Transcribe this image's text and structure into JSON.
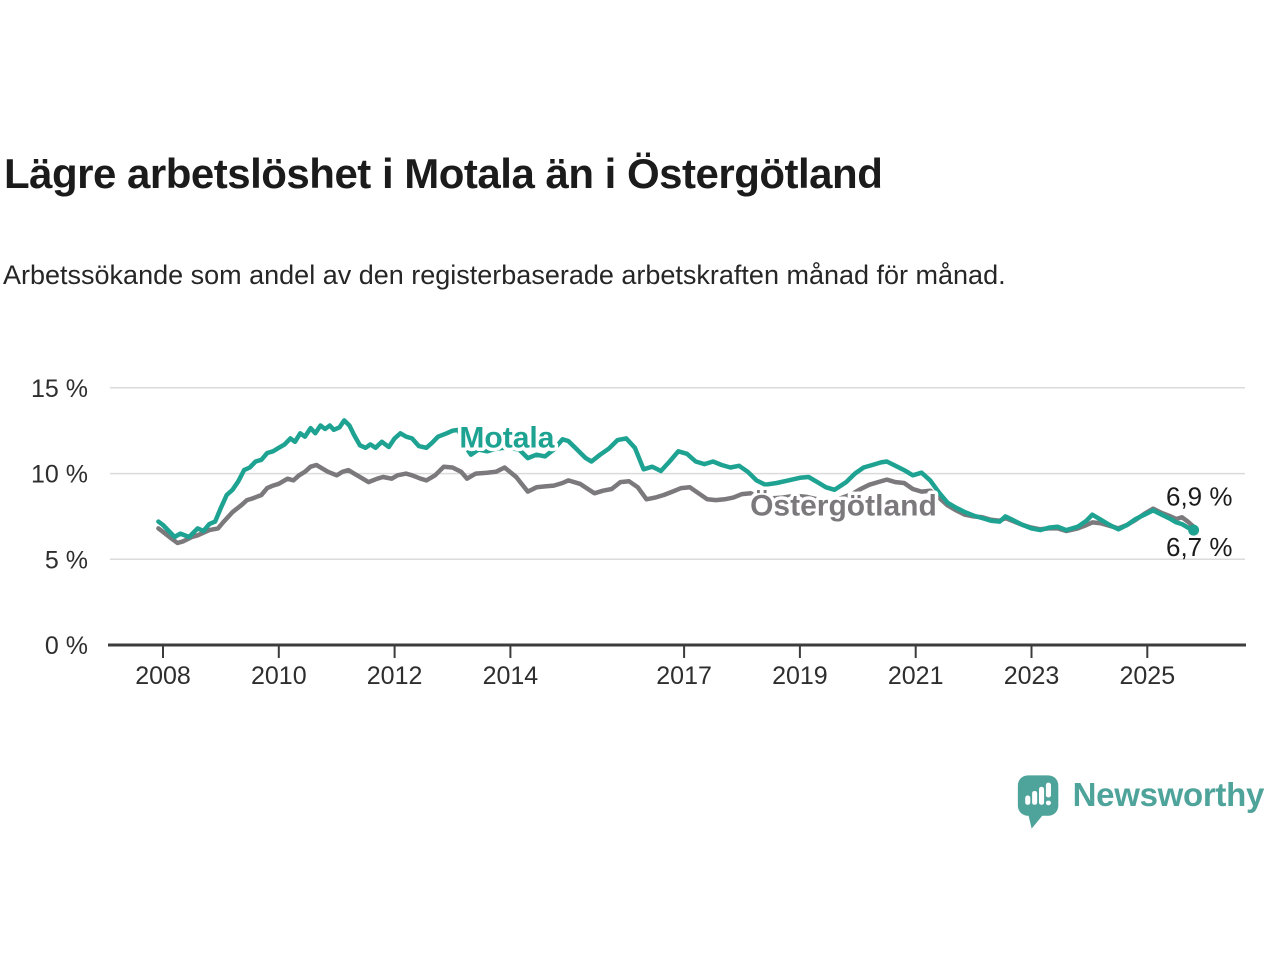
{
  "title": "Lägre arbetslöshet i Motala än i Östergötland",
  "subtitle": "Arbetssökande som andel av den registerbaserade arbetskraften månad för månad.",
  "branding": {
    "logo_text": "Newsworthy",
    "logo_color": "#4ea39a",
    "logo_icon": "bar-chart-speech-bubble"
  },
  "colors": {
    "motala": "#1ea392",
    "ostergotland": "#7b797c",
    "grid": "#dbdbdb",
    "axis": "#3c3c3c",
    "text_dark": "#1b1b1b",
    "text_medium": "#2e2e2e"
  },
  "chart_data": {
    "type": "line",
    "title": "Lägre arbetslöshet i Motala än i Östergötland",
    "subtitle": "Arbetssökande som andel av den registerbaserade arbetskraften månad för månad.",
    "xlabel": "",
    "ylabel": "",
    "y_unit": "percent of registered labour force",
    "x_unit": "year (monthly data)",
    "xlim": [
      2007.8,
      2026.4
    ],
    "ylim": [
      0,
      15.8
    ],
    "grid": "horizontal",
    "legend_position": "inline-labels",
    "x_ticks": [
      2008,
      2010,
      2012,
      2014,
      2017,
      2019,
      2021,
      2023,
      2025
    ],
    "y_ticks": [
      {
        "value": 0,
        "label": "0 %"
      },
      {
        "value": 5,
        "label": "5 %"
      },
      {
        "value": 10,
        "label": "10 %"
      },
      {
        "value": 15,
        "label": "15 %"
      }
    ],
    "series": [
      {
        "name": "Motala",
        "color": "#1ea392",
        "end_label": "6,7 %",
        "end_label_side": "below",
        "end_dot": true,
        "label_anchor": [
          2013.12,
          11.52
        ],
        "points": [
          [
            2007.92,
            7.2
          ],
          [
            2008.0,
            7.0
          ],
          [
            2008.1,
            6.65
          ],
          [
            2008.2,
            6.3
          ],
          [
            2008.3,
            6.5
          ],
          [
            2008.45,
            6.3
          ],
          [
            2008.6,
            6.8
          ],
          [
            2008.7,
            6.65
          ],
          [
            2008.8,
            7.05
          ],
          [
            2008.9,
            7.2
          ],
          [
            2009.0,
            8.0
          ],
          [
            2009.1,
            8.75
          ],
          [
            2009.2,
            9.05
          ],
          [
            2009.3,
            9.55
          ],
          [
            2009.4,
            10.2
          ],
          [
            2009.5,
            10.35
          ],
          [
            2009.6,
            10.7
          ],
          [
            2009.7,
            10.8
          ],
          [
            2009.8,
            11.2
          ],
          [
            2009.9,
            11.3
          ],
          [
            2010.0,
            11.5
          ],
          [
            2010.1,
            11.7
          ],
          [
            2010.2,
            12.05
          ],
          [
            2010.28,
            11.85
          ],
          [
            2010.37,
            12.35
          ],
          [
            2010.45,
            12.15
          ],
          [
            2010.55,
            12.65
          ],
          [
            2010.63,
            12.35
          ],
          [
            2010.72,
            12.8
          ],
          [
            2010.8,
            12.6
          ],
          [
            2010.88,
            12.8
          ],
          [
            2010.95,
            12.55
          ],
          [
            2011.05,
            12.7
          ],
          [
            2011.13,
            13.1
          ],
          [
            2011.22,
            12.8
          ],
          [
            2011.3,
            12.25
          ],
          [
            2011.4,
            11.65
          ],
          [
            2011.5,
            11.5
          ],
          [
            2011.58,
            11.7
          ],
          [
            2011.67,
            11.5
          ],
          [
            2011.78,
            11.85
          ],
          [
            2011.9,
            11.55
          ],
          [
            2012.0,
            12.05
          ],
          [
            2012.1,
            12.35
          ],
          [
            2012.2,
            12.15
          ],
          [
            2012.3,
            12.05
          ],
          [
            2012.42,
            11.6
          ],
          [
            2012.55,
            11.5
          ],
          [
            2012.65,
            11.8
          ],
          [
            2012.75,
            12.15
          ],
          [
            2012.9,
            12.35
          ],
          [
            2013.0,
            12.5
          ],
          [
            2013.1,
            12.55
          ],
          [
            2013.22,
            11.6
          ],
          [
            2013.32,
            11.1
          ],
          [
            2013.45,
            11.4
          ],
          [
            2013.6,
            11.3
          ],
          [
            2013.75,
            11.45
          ],
          [
            2013.9,
            11.5
          ],
          [
            2014.05,
            11.45
          ],
          [
            2014.15,
            11.4
          ],
          [
            2014.3,
            10.9
          ],
          [
            2014.45,
            11.1
          ],
          [
            2014.6,
            11.0
          ],
          [
            2014.75,
            11.4
          ],
          [
            2014.9,
            12.0
          ],
          [
            2015.0,
            11.9
          ],
          [
            2015.15,
            11.4
          ],
          [
            2015.3,
            10.9
          ],
          [
            2015.4,
            10.7
          ],
          [
            2015.55,
            11.1
          ],
          [
            2015.7,
            11.45
          ],
          [
            2015.85,
            11.95
          ],
          [
            2016.0,
            12.05
          ],
          [
            2016.15,
            11.5
          ],
          [
            2016.3,
            10.25
          ],
          [
            2016.45,
            10.4
          ],
          [
            2016.6,
            10.15
          ],
          [
            2016.75,
            10.7
          ],
          [
            2016.9,
            11.3
          ],
          [
            2017.05,
            11.15
          ],
          [
            2017.2,
            10.7
          ],
          [
            2017.35,
            10.55
          ],
          [
            2017.5,
            10.7
          ],
          [
            2017.65,
            10.5
          ],
          [
            2017.8,
            10.35
          ],
          [
            2017.95,
            10.45
          ],
          [
            2018.1,
            10.1
          ],
          [
            2018.25,
            9.6
          ],
          [
            2018.4,
            9.35
          ],
          [
            2018.6,
            9.45
          ],
          [
            2018.8,
            9.6
          ],
          [
            2019.0,
            9.75
          ],
          [
            2019.15,
            9.8
          ],
          [
            2019.3,
            9.5
          ],
          [
            2019.45,
            9.2
          ],
          [
            2019.6,
            9.05
          ],
          [
            2019.8,
            9.5
          ],
          [
            2019.95,
            10.0
          ],
          [
            2020.1,
            10.35
          ],
          [
            2020.25,
            10.5
          ],
          [
            2020.4,
            10.65
          ],
          [
            2020.5,
            10.7
          ],
          [
            2020.65,
            10.45
          ],
          [
            2020.8,
            10.2
          ],
          [
            2020.95,
            9.9
          ],
          [
            2021.1,
            10.05
          ],
          [
            2021.25,
            9.6
          ],
          [
            2021.4,
            8.9
          ],
          [
            2021.55,
            8.3
          ],
          [
            2021.7,
            8.0
          ],
          [
            2021.85,
            7.75
          ],
          [
            2022.0,
            7.55
          ],
          [
            2022.15,
            7.4
          ],
          [
            2022.3,
            7.25
          ],
          [
            2022.45,
            7.2
          ],
          [
            2022.55,
            7.5
          ],
          [
            2022.7,
            7.25
          ],
          [
            2022.85,
            7.0
          ],
          [
            2023.0,
            6.8
          ],
          [
            2023.15,
            6.7
          ],
          [
            2023.3,
            6.85
          ],
          [
            2023.45,
            6.9
          ],
          [
            2023.6,
            6.7
          ],
          [
            2023.8,
            6.9
          ],
          [
            2023.95,
            7.25
          ],
          [
            2024.05,
            7.6
          ],
          [
            2024.2,
            7.3
          ],
          [
            2024.35,
            7.0
          ],
          [
            2024.5,
            6.75
          ],
          [
            2024.65,
            7.0
          ],
          [
            2024.8,
            7.35
          ],
          [
            2024.95,
            7.6
          ],
          [
            2025.1,
            7.85
          ],
          [
            2025.25,
            7.6
          ],
          [
            2025.4,
            7.35
          ],
          [
            2025.5,
            7.15
          ],
          [
            2025.6,
            7.05
          ],
          [
            2025.7,
            6.85
          ],
          [
            2025.8,
            6.7
          ]
        ]
      },
      {
        "name": "Östergötland",
        "color": "#7b797c",
        "end_label": "6,9 %",
        "end_label_side": "above",
        "end_dot": false,
        "label_anchor": [
          2018.14,
          7.55
        ],
        "points": [
          [
            2007.92,
            6.8
          ],
          [
            2008.0,
            6.6
          ],
          [
            2008.15,
            6.2
          ],
          [
            2008.25,
            5.95
          ],
          [
            2008.35,
            6.05
          ],
          [
            2008.5,
            6.3
          ],
          [
            2008.6,
            6.4
          ],
          [
            2008.8,
            6.7
          ],
          [
            2008.95,
            6.8
          ],
          [
            2009.05,
            7.2
          ],
          [
            2009.2,
            7.75
          ],
          [
            2009.35,
            8.15
          ],
          [
            2009.45,
            8.45
          ],
          [
            2009.55,
            8.55
          ],
          [
            2009.7,
            8.75
          ],
          [
            2009.8,
            9.15
          ],
          [
            2009.9,
            9.3
          ],
          [
            2010.0,
            9.4
          ],
          [
            2010.15,
            9.7
          ],
          [
            2010.25,
            9.6
          ],
          [
            2010.35,
            9.9
          ],
          [
            2010.45,
            10.1
          ],
          [
            2010.55,
            10.4
          ],
          [
            2010.65,
            10.5
          ],
          [
            2010.75,
            10.3
          ],
          [
            2010.85,
            10.1
          ],
          [
            2011.0,
            9.9
          ],
          [
            2011.1,
            10.1
          ],
          [
            2011.2,
            10.2
          ],
          [
            2011.3,
            10.0
          ],
          [
            2011.45,
            9.7
          ],
          [
            2011.55,
            9.5
          ],
          [
            2011.7,
            9.7
          ],
          [
            2011.8,
            9.8
          ],
          [
            2011.95,
            9.7
          ],
          [
            2012.05,
            9.9
          ],
          [
            2012.2,
            10.0
          ],
          [
            2012.3,
            9.9
          ],
          [
            2012.45,
            9.7
          ],
          [
            2012.55,
            9.6
          ],
          [
            2012.7,
            9.9
          ],
          [
            2012.85,
            10.4
          ],
          [
            2013.0,
            10.35
          ],
          [
            2013.15,
            10.1
          ],
          [
            2013.25,
            9.7
          ],
          [
            2013.4,
            10.0
          ],
          [
            2013.6,
            10.05
          ],
          [
            2013.75,
            10.1
          ],
          [
            2013.9,
            10.35
          ],
          [
            2014.1,
            9.8
          ],
          [
            2014.3,
            8.95
          ],
          [
            2014.45,
            9.2
          ],
          [
            2014.6,
            9.25
          ],
          [
            2014.75,
            9.3
          ],
          [
            2014.9,
            9.45
          ],
          [
            2015.0,
            9.6
          ],
          [
            2015.2,
            9.4
          ],
          [
            2015.45,
            8.85
          ],
          [
            2015.6,
            9.0
          ],
          [
            2015.75,
            9.1
          ],
          [
            2015.9,
            9.5
          ],
          [
            2016.05,
            9.55
          ],
          [
            2016.2,
            9.2
          ],
          [
            2016.35,
            8.5
          ],
          [
            2016.5,
            8.6
          ],
          [
            2016.65,
            8.75
          ],
          [
            2016.8,
            8.95
          ],
          [
            2016.95,
            9.15
          ],
          [
            2017.1,
            9.2
          ],
          [
            2017.25,
            8.85
          ],
          [
            2017.4,
            8.5
          ],
          [
            2017.55,
            8.45
          ],
          [
            2017.7,
            8.5
          ],
          [
            2017.85,
            8.6
          ],
          [
            2018.0,
            8.8
          ],
          [
            2018.15,
            8.85
          ],
          [
            2018.3,
            8.65
          ],
          [
            2018.5,
            8.55
          ],
          [
            2018.7,
            8.6
          ],
          [
            2018.9,
            8.7
          ],
          [
            2019.1,
            8.65
          ],
          [
            2019.3,
            8.5
          ],
          [
            2019.5,
            8.4
          ],
          [
            2019.7,
            8.55
          ],
          [
            2019.9,
            8.8
          ],
          [
            2020.05,
            9.1
          ],
          [
            2020.2,
            9.35
          ],
          [
            2020.35,
            9.5
          ],
          [
            2020.5,
            9.65
          ],
          [
            2020.65,
            9.5
          ],
          [
            2020.8,
            9.45
          ],
          [
            2020.95,
            9.1
          ],
          [
            2021.1,
            8.95
          ],
          [
            2021.25,
            9.0
          ],
          [
            2021.4,
            8.6
          ],
          [
            2021.55,
            8.15
          ],
          [
            2021.7,
            7.85
          ],
          [
            2021.85,
            7.6
          ],
          [
            2022.0,
            7.5
          ],
          [
            2022.15,
            7.45
          ],
          [
            2022.3,
            7.3
          ],
          [
            2022.45,
            7.25
          ],
          [
            2022.55,
            7.4
          ],
          [
            2022.7,
            7.2
          ],
          [
            2022.85,
            7.0
          ],
          [
            2023.0,
            6.85
          ],
          [
            2023.15,
            6.75
          ],
          [
            2023.3,
            6.8
          ],
          [
            2023.45,
            6.8
          ],
          [
            2023.6,
            6.65
          ],
          [
            2023.8,
            6.8
          ],
          [
            2023.95,
            7.0
          ],
          [
            2024.05,
            7.15
          ],
          [
            2024.2,
            7.1
          ],
          [
            2024.35,
            6.95
          ],
          [
            2024.5,
            6.8
          ],
          [
            2024.65,
            7.0
          ],
          [
            2024.8,
            7.3
          ],
          [
            2024.95,
            7.65
          ],
          [
            2025.1,
            7.95
          ],
          [
            2025.25,
            7.7
          ],
          [
            2025.4,
            7.5
          ],
          [
            2025.5,
            7.35
          ],
          [
            2025.6,
            7.45
          ],
          [
            2025.7,
            7.2
          ],
          [
            2025.8,
            6.9
          ]
        ]
      }
    ]
  }
}
